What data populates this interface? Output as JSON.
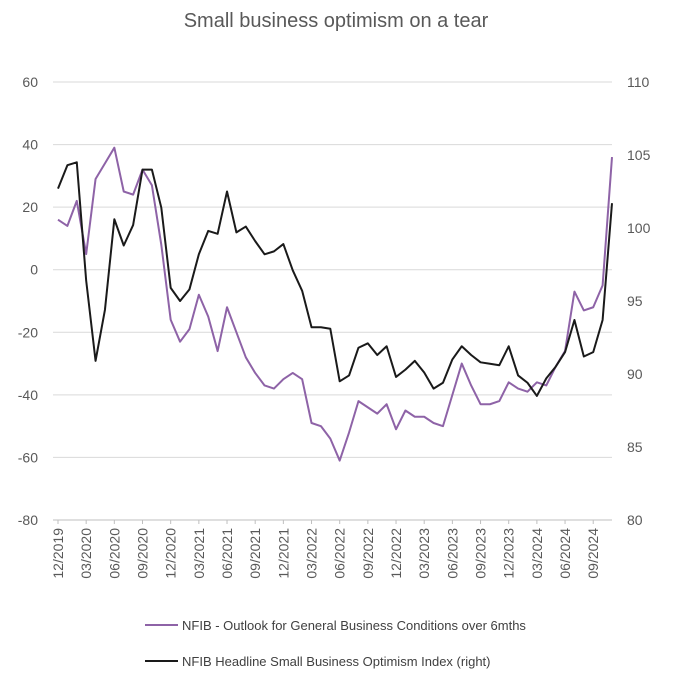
{
  "chart_data": {
    "type": "line",
    "title": "Small business optimism on a tear",
    "xlabel": "",
    "ylabel_left": "",
    "ylabel_right": "",
    "ylim_left": [
      -80,
      60
    ],
    "yticks_left": [
      -80,
      -60,
      -40,
      -20,
      0,
      20,
      40,
      60
    ],
    "ylim_right": [
      80,
      110
    ],
    "yticks_right": [
      80,
      85,
      90,
      95,
      100,
      105,
      110
    ],
    "grid": true,
    "legend_position": "bottom",
    "x": [
      "12/2019",
      "01/2020",
      "02/2020",
      "03/2020",
      "04/2020",
      "05/2020",
      "06/2020",
      "07/2020",
      "08/2020",
      "09/2020",
      "10/2020",
      "11/2020",
      "12/2020",
      "01/2021",
      "02/2021",
      "03/2021",
      "04/2021",
      "05/2021",
      "06/2021",
      "07/2021",
      "08/2021",
      "09/2021",
      "10/2021",
      "11/2021",
      "12/2021",
      "01/2022",
      "02/2022",
      "03/2022",
      "04/2022",
      "05/2022",
      "06/2022",
      "07/2022",
      "08/2022",
      "09/2022",
      "10/2022",
      "11/2022",
      "12/2022",
      "01/2023",
      "02/2023",
      "03/2023",
      "04/2023",
      "05/2023",
      "06/2023",
      "07/2023",
      "08/2023",
      "09/2023",
      "10/2023",
      "11/2023",
      "12/2023",
      "01/2024",
      "02/2024",
      "03/2024",
      "04/2024",
      "05/2024",
      "06/2024",
      "07/2024",
      "08/2024",
      "09/2024",
      "10/2024",
      "11/2024"
    ],
    "x_tick_labels": [
      "12/2019",
      "03/2020",
      "06/2020",
      "09/2020",
      "12/2020",
      "03/2021",
      "06/2021",
      "09/2021",
      "12/2021",
      "03/2022",
      "06/2022",
      "09/2022",
      "12/2022",
      "03/2023",
      "06/2023",
      "09/2023",
      "12/2023",
      "03/2024",
      "06/2024",
      "09/2024"
    ],
    "series": [
      {
        "name": "NFIB - Outlook for General Business Conditions over 6mths",
        "axis": "left",
        "color": "#8E63A7",
        "values": [
          16,
          14,
          22,
          5,
          29,
          34,
          39,
          25,
          24,
          32,
          27,
          8,
          -16,
          -23,
          -19,
          -8,
          -15,
          -26,
          -12,
          -20,
          -28,
          -33,
          -37,
          -38,
          -35,
          -33,
          -35,
          -49,
          -50,
          -54,
          -61,
          -52,
          -42,
          -44,
          -46,
          -43,
          -51,
          -45,
          -47,
          -47,
          -49,
          -50,
          -40,
          -30,
          -37,
          -43,
          -43,
          -42,
          -36,
          -38,
          -39,
          -36,
          -37,
          -31,
          -26,
          -7,
          -13,
          -12,
          -5,
          36
        ]
      },
      {
        "name": "NFIB Headline Small Business Optimism Index (right)",
        "axis": "right",
        "color": "#1A1A1A",
        "values": [
          102.7,
          104.3,
          104.5,
          96.4,
          90.9,
          94.4,
          100.6,
          98.8,
          100.2,
          104.0,
          104.0,
          101.4,
          95.9,
          95.0,
          95.8,
          98.2,
          99.8,
          99.6,
          102.5,
          99.7,
          100.1,
          99.1,
          98.2,
          98.4,
          98.9,
          97.1,
          95.7,
          93.2,
          93.2,
          93.1,
          89.5,
          89.9,
          91.8,
          92.1,
          91.3,
          91.9,
          89.8,
          90.3,
          90.9,
          90.1,
          89.0,
          89.4,
          91.0,
          91.9,
          91.3,
          90.8,
          90.7,
          90.6,
          91.9,
          89.9,
          89.4,
          88.5,
          89.7,
          90.5,
          91.5,
          93.7,
          91.2,
          91.5,
          93.7,
          101.7
        ]
      }
    ]
  }
}
